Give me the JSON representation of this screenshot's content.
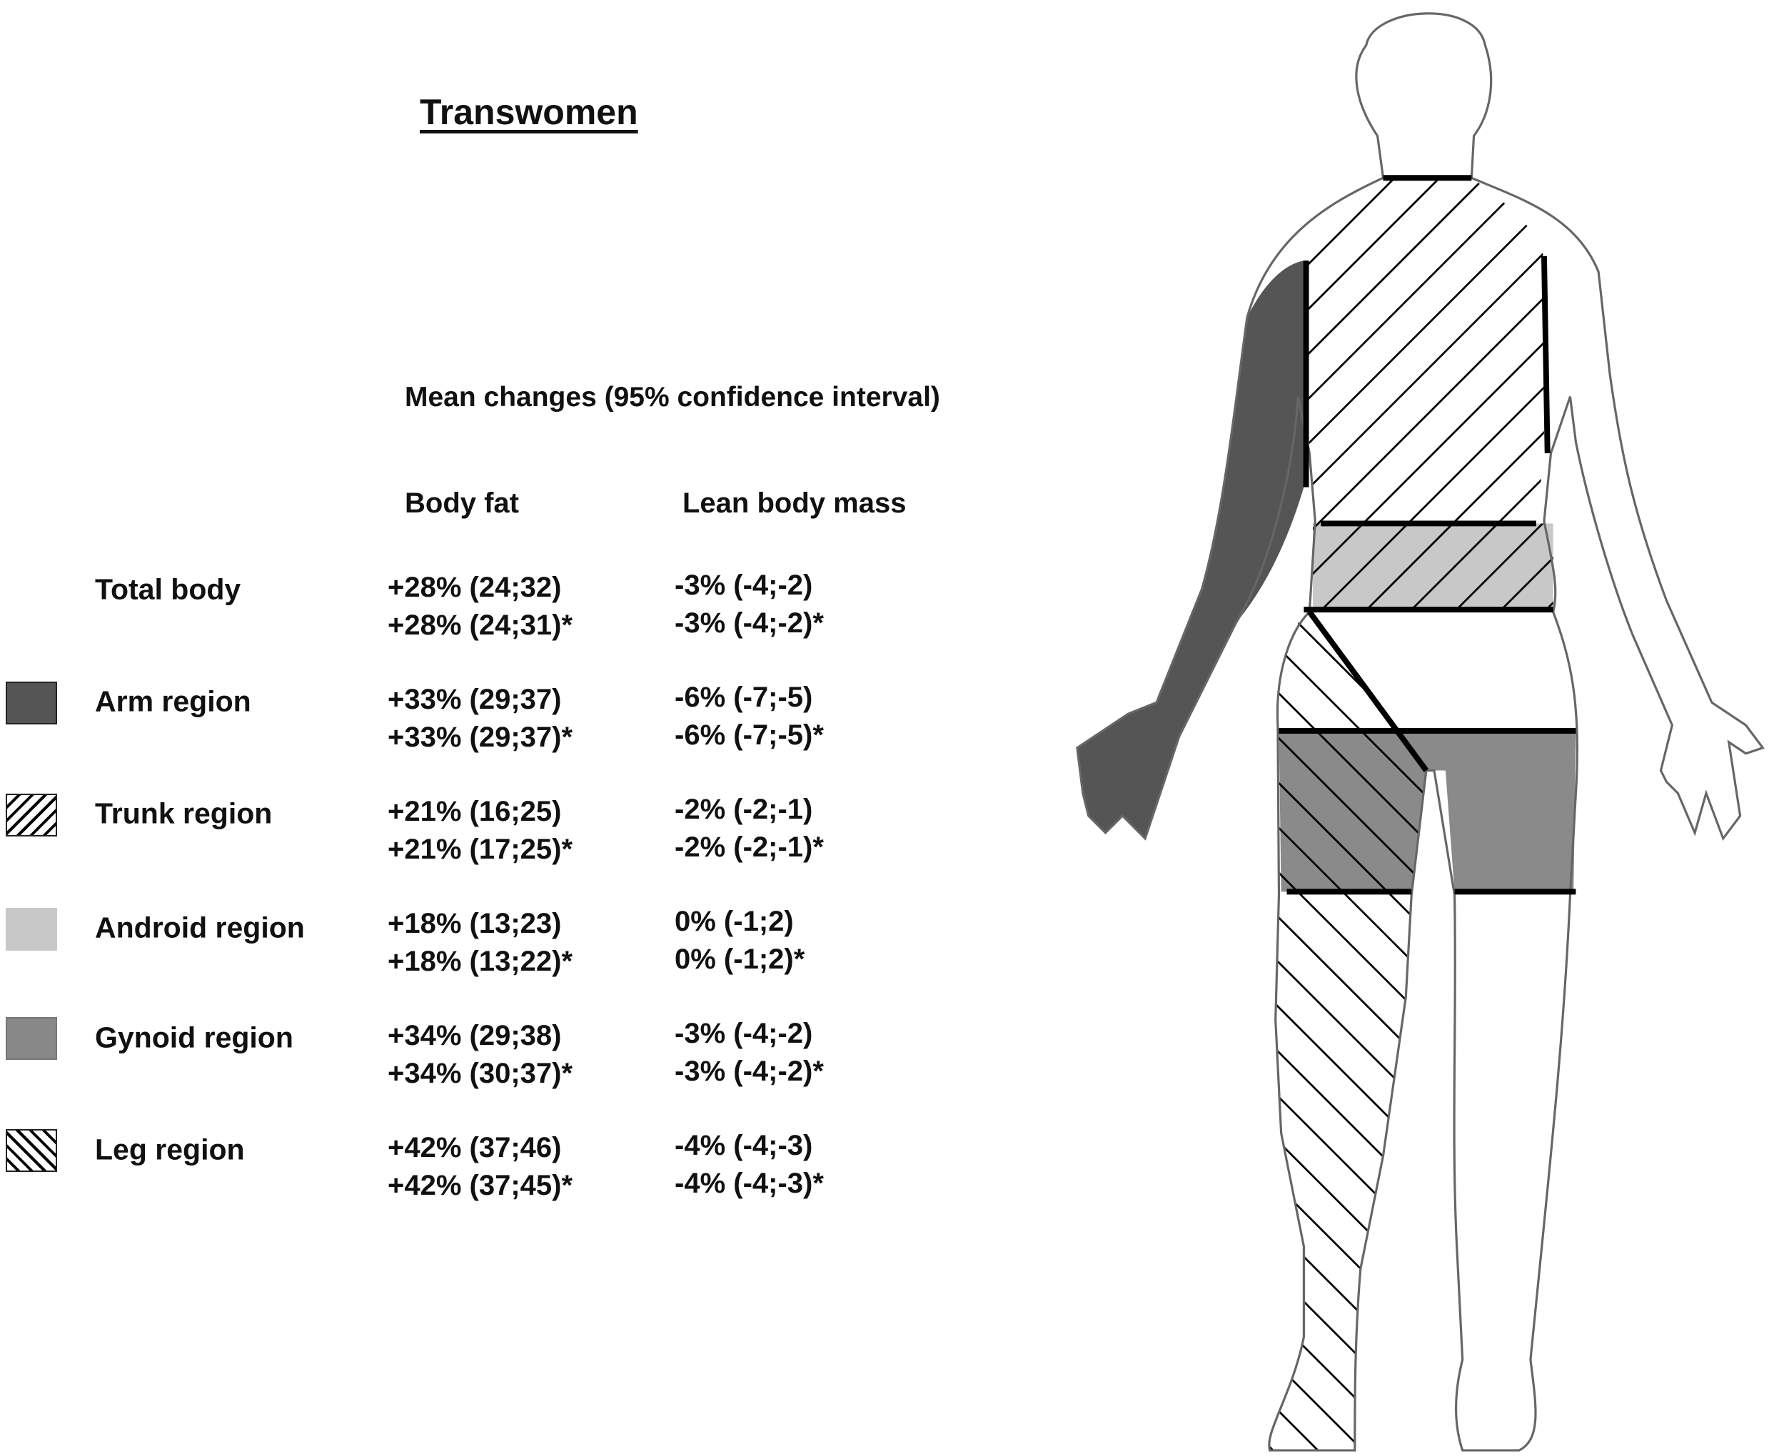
{
  "title": "Transwomen",
  "subtitle": "Mean changes (95% confidence interval)",
  "columns": {
    "body_fat": "Body fat",
    "lean_body_mass": "Lean body mass"
  },
  "colors": {
    "arm": "#555555",
    "android": "#c8c8c8",
    "gynoid": "#888888",
    "outline": "#666666"
  },
  "rows": [
    {
      "label": "Total body",
      "swatch": "none",
      "body_fat": [
        "+28% (24;32)",
        "+28% (24;31)*"
      ],
      "lean": [
        "-3% (-4;-2)",
        "-3% (-4;-2)*"
      ]
    },
    {
      "label": "Arm region",
      "swatch": "solid-dark-gray",
      "body_fat": [
        "+33% (29;37)",
        "+33% (29;37)*"
      ],
      "lean": [
        "-6% (-7;-5)",
        "-6% (-7;-5)*"
      ]
    },
    {
      "label": "Trunk region",
      "swatch": "forward-hatch",
      "body_fat": [
        "+21% (16;25)",
        "+21% (17;25)*"
      ],
      "lean": [
        "-2% (-2;-1)",
        "-2% (-2;-1)*"
      ]
    },
    {
      "label": "Android region",
      "swatch": "solid-light-gray",
      "body_fat": [
        "+18% (13;23)",
        "+18% (13;22)*"
      ],
      "lean": [
        "0% (-1;2)",
        "0% (-1;2)*"
      ]
    },
    {
      "label": "Gynoid region",
      "swatch": "solid-medium-gray",
      "body_fat": [
        "+34% (29;38)",
        "+34% (30;37)*"
      ],
      "lean": [
        "-3% (-4;-2)",
        "-3% (-4;-2)*"
      ]
    },
    {
      "label": "Leg region",
      "swatch": "back-hatch",
      "body_fat": [
        "+42% (37;46)",
        "+42% (37;45)*"
      ],
      "lean": [
        "-4% (-4;-3)",
        "-4% (-4;-3)*"
      ]
    }
  ]
}
